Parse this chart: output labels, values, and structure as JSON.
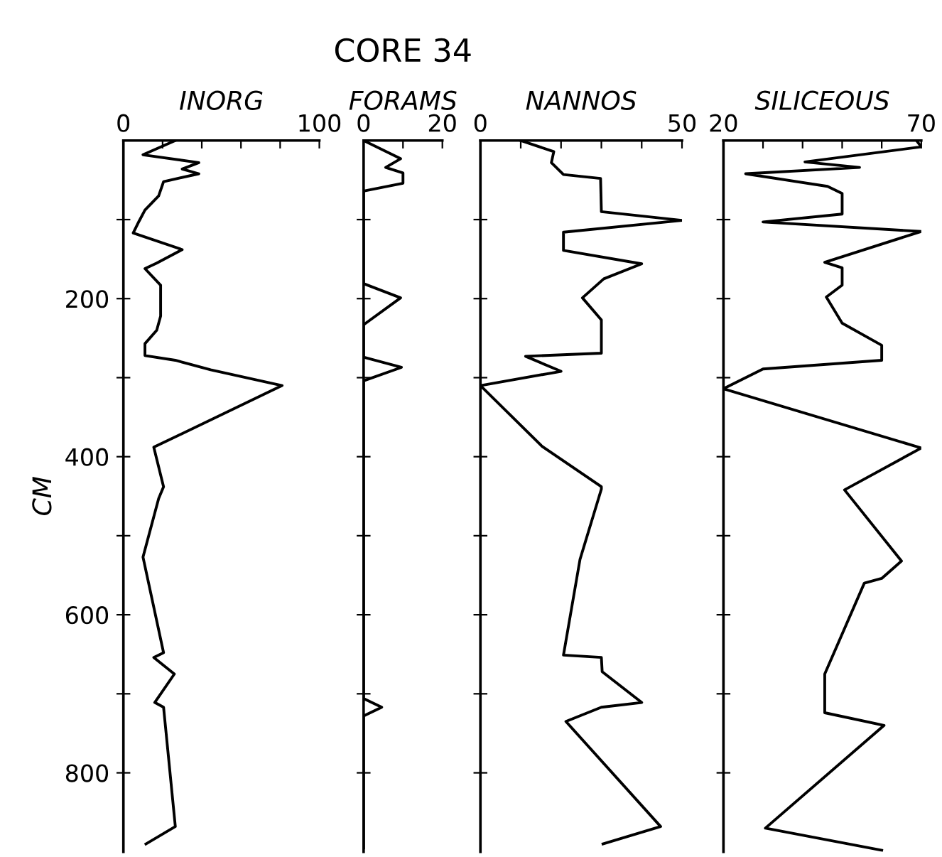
{
  "chart_data": [
    {
      "type": "line",
      "xlabel": "INORG",
      "ylabel": "CM",
      "line_style": "solid",
      "xlim": [
        0,
        100
      ],
      "xticks": [
        0,
        {
          "value": 20,
          "label": null
        },
        {
          "value": 40,
          "label": null
        },
        {
          "value": 60,
          "label": null
        },
        {
          "value": 80,
          "label": null
        },
        100
      ],
      "ylim": [
        900,
        0
      ],
      "yticks": [
        {
          "value": 100,
          "label": null
        },
        200,
        {
          "value": 300,
          "label": null
        },
        400,
        {
          "value": 500,
          "label": null
        },
        600,
        {
          "value": 700,
          "label": null
        },
        800
      ],
      "series": [
        {
          "color": "#000000",
          "x": [
            26.5,
            10,
            38.5,
            30,
            38.5,
            20.5,
            18,
            11,
            8,
            5,
            30,
            17,
            11,
            19,
            19,
            17,
            11,
            11,
            26.5,
            44.5,
            81,
            15.5,
            20.5,
            18,
            10,
            20.5,
            15.5,
            26,
            16,
            20.5,
            26.5,
            11.5
          ],
          "values": [
            0,
            18,
            28,
            36,
            42,
            52,
            70,
            88,
            102,
            117,
            138,
            155,
            162,
            183,
            222,
            240,
            257,
            272,
            278,
            290,
            310,
            388,
            438,
            453,
            527,
            648,
            654,
            675,
            711,
            717,
            868,
            890
          ]
        }
      ]
    },
    {
      "type": "line",
      "title": "CORE 34",
      "xlabel": "FORAMS",
      "tick_labels": "x",
      "line_style": "solid",
      "xlim": [
        0,
        20
      ],
      "xticks": [
        0,
        {
          "value": 10,
          "label": null
        },
        20
      ],
      "ylim": [
        900,
        0
      ],
      "yticks": [
        {
          "value": 100,
          "label": null
        },
        {
          "value": 200,
          "label": null
        },
        {
          "value": 300,
          "label": null
        },
        {
          "value": 400,
          "label": null
        },
        {
          "value": 500,
          "label": null
        },
        {
          "value": 600,
          "label": null
        },
        {
          "value": 700,
          "label": null
        },
        {
          "value": 800,
          "label": null
        }
      ],
      "series": [
        {
          "color": "#000000",
          "x": [
            0,
            9.4,
            5.6,
            10,
            10,
            0,
            0,
            9.4,
            0,
            0,
            9.6,
            0,
            0,
            4.6,
            0,
            0
          ],
          "values": [
            0,
            23,
            34,
            41,
            54,
            64,
            181,
            199,
            233,
            274,
            287,
            304,
            706,
            717,
            728,
            895
          ]
        }
      ]
    },
    {
      "type": "line",
      "xlabel": "NANNOS",
      "tick_labels": "x",
      "line_style": "solid",
      "xlim": [
        0,
        50
      ],
      "xticks": [
        0,
        {
          "value": 10,
          "label": null
        },
        {
          "value": 20,
          "label": null
        },
        {
          "value": 30,
          "label": null
        },
        {
          "value": 40,
          "label": null
        },
        50
      ],
      "ylim": [
        900,
        0
      ],
      "yticks": [
        {
          "value": 100,
          "label": null
        },
        {
          "value": 200,
          "label": null
        },
        {
          "value": 300,
          "label": null
        },
        {
          "value": 400,
          "label": null
        },
        {
          "value": 500,
          "label": null
        },
        {
          "value": 600,
          "label": null
        },
        {
          "value": 700,
          "label": null
        },
        {
          "value": 800,
          "label": null
        }
      ],
      "series": [
        {
          "color": "#000000",
          "x": [
            10,
            18.2,
            17.6,
            20.6,
            29.8,
            30,
            50,
            20.6,
            20.6,
            40,
            30.6,
            25.3,
            30,
            30,
            11.2,
            20,
            0,
            15.3,
            30,
            30,
            24.7,
            20.6,
            30,
            30.2,
            40,
            30,
            21.2,
            44.7,
            30.4
          ],
          "values": [
            0,
            14,
            28,
            43,
            48,
            90,
            101,
            116,
            139,
            156,
            175,
            199,
            227,
            269,
            273,
            292,
            310,
            387,
            438,
            441,
            530,
            651,
            654,
            672,
            711,
            717,
            735,
            868,
            890
          ]
        }
      ]
    },
    {
      "type": "line",
      "xlabel": "SILICEOUS",
      "tick_labels": "x",
      "line_style": "solid",
      "xlim": [
        20,
        70
      ],
      "xticks": [
        20,
        {
          "value": 30,
          "label": null
        },
        {
          "value": 40,
          "label": null
        },
        {
          "value": 50,
          "label": null
        },
        {
          "value": 60,
          "label": null
        },
        70
      ],
      "ylim": [
        900,
        0
      ],
      "yticks": [
        {
          "value": 100,
          "label": null
        },
        {
          "value": 200,
          "label": null
        },
        {
          "value": 300,
          "label": null
        },
        {
          "value": 400,
          "label": null
        },
        {
          "value": 500,
          "label": null
        },
        {
          "value": 600,
          "label": null
        },
        {
          "value": 700,
          "label": null
        },
        {
          "value": 800,
          "label": null
        }
      ],
      "series": [
        {
          "color": "#000000",
          "x": [
            68.8,
            70,
            40.6,
            54.4,
            25.6,
            46.3,
            50,
            50,
            30,
            70,
            45.6,
            50,
            50,
            46,
            50,
            60,
            60,
            30,
            20,
            70,
            50.6,
            65,
            60,
            55.6,
            45.6,
            45.6,
            60.6,
            30.6,
            60
          ],
          "values": [
            0,
            8,
            27,
            34,
            42,
            58,
            67,
            93,
            103,
            115,
            154,
            161,
            183,
            198,
            231,
            259,
            278,
            289,
            314,
            389,
            442,
            532,
            554,
            560,
            675,
            724,
            740,
            870,
            898
          ]
        }
      ]
    }
  ]
}
